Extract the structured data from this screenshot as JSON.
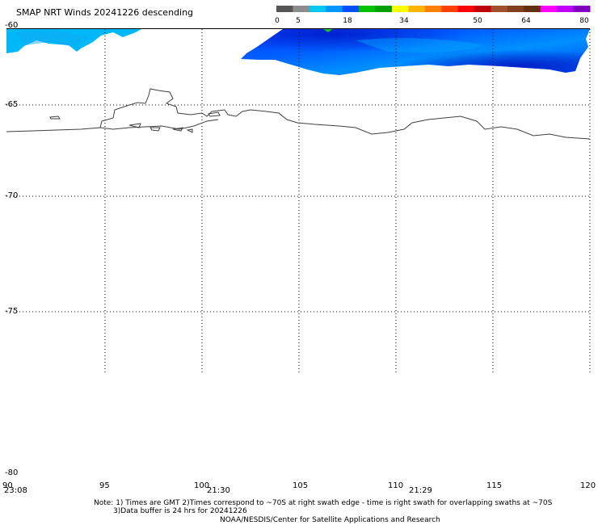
{
  "title": "SMAP NRT Winds  20241226 descending",
  "colorbar": {
    "ticks": [
      "0",
      "5",
      "18",
      "34",
      "50",
      "64",
      "80"
    ],
    "segments": [
      "#555555",
      "#8c8c8c",
      "#00c8f0",
      "#0096ff",
      "#0050ff",
      "#00c000",
      "#00a000",
      "#ffff00",
      "#ffb400",
      "#ff8000",
      "#ff4000",
      "#ff0000",
      "#c00000",
      "#a05030",
      "#804020",
      "#603010",
      "#ff00ff",
      "#c000ff",
      "#8000c0"
    ]
  },
  "lat_labels": [
    "-60",
    "-65",
    "-70",
    "-75",
    "-80"
  ],
  "lon_labels": [
    "90",
    "95",
    "100",
    "105",
    "110",
    "115",
    "120"
  ],
  "time_labels": [
    "23:08",
    "21:30",
    "21:29"
  ],
  "notes": {
    "line1": "Note: 1) Times are GMT 2)Times correspond to ~70S at right swath edge - time is right swath for overlapping swaths at ~70S",
    "line2": "3)Data buffer is 24 hrs for 20241226",
    "line3": "NOAA/NESDIS/Center for Satellite Applications and Research"
  },
  "map": {
    "lat_range": [
      -60,
      -80
    ],
    "lon_range": [
      90,
      120
    ],
    "grid": true,
    "wind_fill_colors": [
      "#00b4f8",
      "#0070ff",
      "#0030e0"
    ]
  }
}
